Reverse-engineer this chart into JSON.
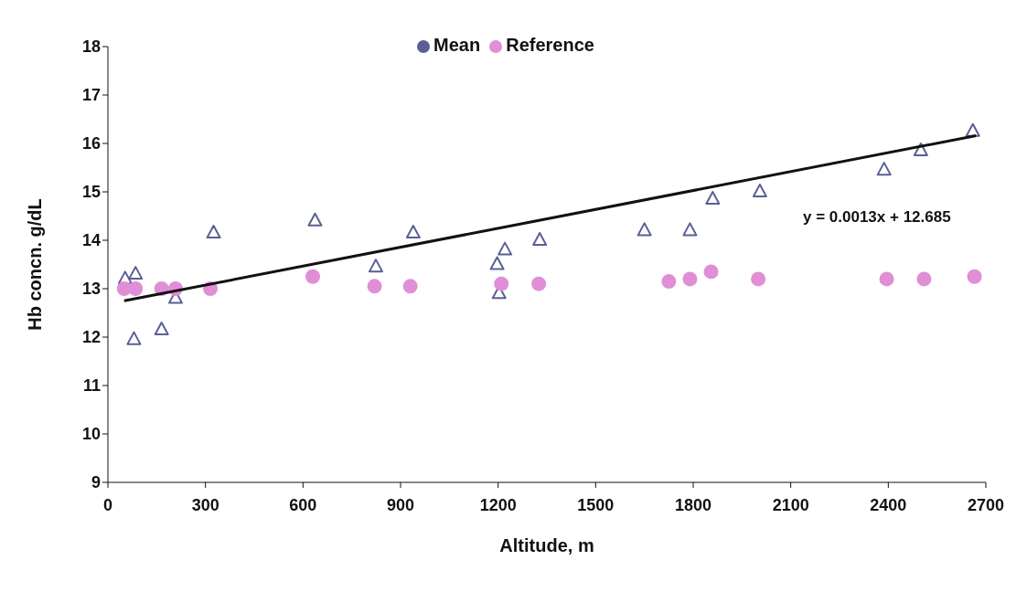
{
  "chart_data": {
    "type": "scatter",
    "xlabel": "Altitude, m",
    "ylabel": "Hb concn. g/dL",
    "xlim": [
      0,
      2700
    ],
    "xticks": [
      0,
      300,
      600,
      900,
      1200,
      1500,
      1800,
      2100,
      2400,
      2700
    ],
    "ylim": [
      9,
      18
    ],
    "yticks": [
      9,
      10,
      11,
      12,
      13,
      14,
      15,
      16,
      17,
      18
    ],
    "grid": false,
    "legend": "top",
    "annotations": [
      "y = 0.0013x + 12.685"
    ],
    "series": [
      {
        "name": "Mean",
        "color": "#5a5f95",
        "marker": "triangle",
        "x": [
          53,
          85,
          80,
          165,
          208,
          325,
          637,
          824,
          939,
          1203,
          1197,
          1221,
          1328,
          1650,
          1790,
          1860,
          2005,
          2387,
          2500,
          2660
        ],
        "values": [
          13.2,
          13.3,
          11.95,
          12.15,
          12.8,
          14.15,
          14.4,
          13.45,
          14.15,
          12.9,
          13.5,
          13.8,
          14.0,
          14.2,
          14.2,
          14.85,
          15.0,
          15.45,
          15.85,
          16.25
        ]
      },
      {
        "name": "Reference",
        "color": "#e08ed6",
        "marker": "circle",
        "x": [
          50,
          85,
          165,
          208,
          315,
          630,
          820,
          930,
          1210,
          1325,
          1725,
          1790,
          1855,
          2000,
          2395,
          2510,
          2665
        ],
        "values": [
          13.0,
          13.0,
          13.0,
          13.0,
          13.0,
          13.25,
          13.05,
          13.05,
          13.1,
          13.1,
          13.15,
          13.2,
          13.35,
          13.2,
          13.2,
          13.2,
          13.25
        ]
      },
      {
        "type": "line",
        "color": "#111111",
        "marker": "none",
        "x": [
          50,
          2670
        ],
        "values": [
          12.75,
          16.16
        ]
      }
    ]
  }
}
